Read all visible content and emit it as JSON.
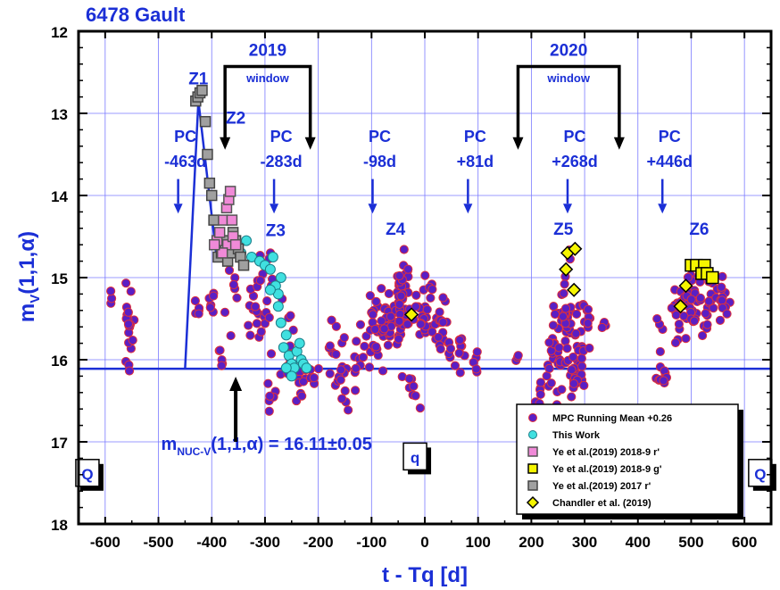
{
  "chart_data": {
    "type": "scatter",
    "title": "6478 Gault",
    "xlabel": "t - Tq [d]",
    "ylabel": {
      "main": "m",
      "sub": "V",
      "rest": "(1,1,α)"
    },
    "xlim": [
      -650,
      650
    ],
    "ylim": [
      18,
      12
    ],
    "y_inverted": true,
    "grid": true,
    "x_ticks": [
      "-600",
      "-500",
      "-400",
      "-300",
      "-200",
      "-100",
      "0",
      "100",
      "200",
      "300",
      "400",
      "500",
      "600"
    ],
    "y_ticks": [
      "12",
      "13",
      "14",
      "15",
      "16",
      "17",
      "18"
    ],
    "nucleus_line": {
      "y": 16.11,
      "label": {
        "main": "m",
        "sub": "NUC-V",
        "rest": "(1,1,α) = 16.11±0.05"
      },
      "color": "#1b2fd6"
    },
    "legend": {
      "placement": "bottom-right",
      "entries": [
        {
          "name": "MPC Running Mean +0.26",
          "marker": "circle",
          "color": "#5a1fc4",
          "edge": "#e0303a"
        },
        {
          "name": "This Work",
          "marker": "circle",
          "color": "#40e0e0",
          "edge": "#1a7f8a"
        },
        {
          "name": "Ye et al.(2019) 2018-9  r'",
          "marker": "square",
          "color": "#f08ad8",
          "edge": "#555555"
        },
        {
          "name": "Ye et al.(2019) 2018-9  g'",
          "marker": "square",
          "color": "#f5f500",
          "edge": "#000000"
        },
        {
          "name": "Ye et al.(2019) 2017 r'",
          "marker": "square",
          "color": "#a0a0a0",
          "edge": "#444444"
        },
        {
          "name": "Chandler et al. (2019)",
          "marker": "diamond",
          "color": "#f5f500",
          "edge": "#000000"
        }
      ]
    },
    "zones": [
      {
        "label": "Z1",
        "x": -425,
        "y": 12.57
      },
      {
        "label": "Z2",
        "x": -355,
        "y": 13.05
      },
      {
        "label": "Z3",
        "x": -280,
        "y": 14.42
      },
      {
        "label": "Z4",
        "x": -55,
        "y": 14.4
      },
      {
        "label": "Z5",
        "x": 260,
        "y": 14.4
      },
      {
        "label": "Z6",
        "x": 515,
        "y": 14.4
      }
    ],
    "perihelion_markers": [
      {
        "line1": "PC",
        "line2": "-463d",
        "x": -463
      },
      {
        "line1": "PC",
        "line2": "-283d",
        "x": -283
      },
      {
        "line1": "PC",
        "line2": "-98d",
        "x": -98
      },
      {
        "line1": "PC",
        "line2": "+81d",
        "x": 81
      },
      {
        "line1": "PC",
        "line2": "+268d",
        "x": 268
      },
      {
        "line1": "PC",
        "line2": "+446d",
        "x": 446
      }
    ],
    "windows": [
      {
        "year": "2019",
        "word": "window",
        "start": -375,
        "end": -215
      },
      {
        "year": "2020",
        "word": "window",
        "start": 175,
        "end": 365
      }
    ],
    "q_markers": [
      {
        "label": "Q",
        "x": -630,
        "y": 17.4
      },
      {
        "label": "q",
        "x": -15,
        "y": 17.2
      },
      {
        "label": "Q",
        "x": 633,
        "y": 17.4
      }
    ],
    "up_arrow": {
      "x": -355,
      "from_y": 17.0,
      "to_y": 16.25
    },
    "z1_fit_line": [
      [
        -450,
        16.11
      ],
      [
        -425,
        12.85
      ],
      [
        -390,
        14.8
      ]
    ],
    "series": [
      {
        "name": "MPC Running Mean +0.26",
        "marker": "circle",
        "clusters": [
          {
            "x": -590,
            "y": 15.2,
            "n": 3,
            "sx": 6,
            "sy": 0.1
          },
          {
            "x": -555,
            "y": 15.5,
            "n": 20,
            "sx": 10,
            "sy": 0.35
          },
          {
            "x": -555,
            "y": 16.1,
            "n": 2,
            "sx": 3,
            "sy": 0.05
          },
          {
            "x": -425,
            "y": 15.4,
            "n": 5,
            "sx": 8,
            "sy": 0.1
          },
          {
            "x": -400,
            "y": 15.3,
            "n": 6,
            "sx": 6,
            "sy": 0.2
          },
          {
            "x": -385,
            "y": 15.9,
            "n": 5,
            "sx": 8,
            "sy": 0.15
          },
          {
            "x": -360,
            "y": 15.2,
            "n": 8,
            "sx": 12,
            "sy": 0.35
          },
          {
            "x": -325,
            "y": 15.5,
            "n": 8,
            "sx": 12,
            "sy": 0.2
          },
          {
            "x": -300,
            "y": 15.3,
            "n": 20,
            "sx": 18,
            "sy": 0.45
          },
          {
            "x": -290,
            "y": 16.5,
            "n": 6,
            "sx": 8,
            "sy": 0.25
          },
          {
            "x": -255,
            "y": 15.8,
            "n": 10,
            "sx": 12,
            "sy": 0.3
          },
          {
            "x": -230,
            "y": 16.1,
            "n": 10,
            "sx": 12,
            "sy": 0.25
          },
          {
            "x": -210,
            "y": 16.2,
            "n": 6,
            "sx": 8,
            "sy": 0.15
          },
          {
            "x": -175,
            "y": 16.0,
            "n": 10,
            "sx": 8,
            "sy": 0.3
          },
          {
            "x": -150,
            "y": 16.3,
            "n": 12,
            "sx": 10,
            "sy": 0.3
          },
          {
            "x": -125,
            "y": 16.1,
            "n": 10,
            "sx": 10,
            "sy": 0.35
          },
          {
            "x": -95,
            "y": 15.7,
            "n": 25,
            "sx": 12,
            "sy": 0.35
          },
          {
            "x": -65,
            "y": 15.5,
            "n": 30,
            "sx": 14,
            "sy": 0.3
          },
          {
            "x": -40,
            "y": 15.4,
            "n": 35,
            "sx": 12,
            "sy": 0.3
          },
          {
            "x": -40,
            "y": 14.9,
            "n": 8,
            "sx": 8,
            "sy": 0.2
          },
          {
            "x": -25,
            "y": 16.3,
            "n": 8,
            "sx": 10,
            "sy": 0.3
          },
          {
            "x": 0,
            "y": 15.4,
            "n": 25,
            "sx": 12,
            "sy": 0.3
          },
          {
            "x": 30,
            "y": 15.6,
            "n": 20,
            "sx": 12,
            "sy": 0.25
          },
          {
            "x": 60,
            "y": 15.9,
            "n": 15,
            "sx": 12,
            "sy": 0.2
          },
          {
            "x": 95,
            "y": 16.0,
            "n": 5,
            "sx": 4,
            "sy": 0.1
          },
          {
            "x": 175,
            "y": 16.0,
            "n": 3,
            "sx": 3,
            "sy": 0.05
          },
          {
            "x": 215,
            "y": 16.4,
            "n": 6,
            "sx": 6,
            "sy": 0.15
          },
          {
            "x": 245,
            "y": 15.9,
            "n": 25,
            "sx": 10,
            "sy": 0.45
          },
          {
            "x": 265,
            "y": 15.5,
            "n": 35,
            "sx": 8,
            "sy": 0.5
          },
          {
            "x": 285,
            "y": 15.9,
            "n": 30,
            "sx": 10,
            "sy": 0.45
          },
          {
            "x": 305,
            "y": 15.5,
            "n": 10,
            "sx": 8,
            "sy": 0.25
          },
          {
            "x": 335,
            "y": 15.6,
            "n": 4,
            "sx": 4,
            "sy": 0.1
          },
          {
            "x": 440,
            "y": 15.8,
            "n": 8,
            "sx": 6,
            "sy": 0.3
          },
          {
            "x": 450,
            "y": 16.2,
            "n": 5,
            "sx": 4,
            "sy": 0.1
          },
          {
            "x": 475,
            "y": 15.4,
            "n": 20,
            "sx": 12,
            "sy": 0.3
          },
          {
            "x": 500,
            "y": 15.3,
            "n": 25,
            "sx": 12,
            "sy": 0.3
          },
          {
            "x": 530,
            "y": 15.3,
            "n": 20,
            "sx": 14,
            "sy": 0.3
          },
          {
            "x": 560,
            "y": 15.3,
            "n": 15,
            "sx": 10,
            "sy": 0.25
          }
        ]
      },
      {
        "name": "This Work",
        "marker": "circle",
        "points": [
          [
            -360,
            14.6
          ],
          [
            -345,
            14.7
          ],
          [
            -335,
            14.55
          ],
          [
            -325,
            14.75
          ],
          [
            -310,
            14.8
          ],
          [
            -300,
            14.85
          ],
          [
            -290,
            14.9
          ],
          [
            -285,
            14.75
          ],
          [
            -280,
            15.1
          ],
          [
            -275,
            15.2
          ],
          [
            -275,
            15.35
          ],
          [
            -270,
            15.55
          ],
          [
            -265,
            15.85
          ],
          [
            -260,
            15.7
          ],
          [
            -255,
            15.95
          ],
          [
            -250,
            16.05
          ],
          [
            -245,
            16.1
          ],
          [
            -240,
            15.9
          ],
          [
            -235,
            15.8
          ],
          [
            -232,
            16.0
          ],
          [
            -228,
            16.05
          ],
          [
            -222,
            16.1
          ],
          [
            -260,
            16.1
          ],
          [
            -250,
            16.2
          ],
          [
            -270,
            15.0
          ],
          [
            -290,
            15.15
          ]
        ]
      },
      {
        "name": "Ye et al.(2019) 2018-9  r'",
        "marker": "square",
        "points": [
          [
            -390,
            14.55
          ],
          [
            -385,
            14.45
          ],
          [
            -378,
            14.3
          ],
          [
            -372,
            14.15
          ],
          [
            -368,
            14.05
          ],
          [
            -365,
            13.95
          ],
          [
            -362,
            14.3
          ],
          [
            -370,
            14.6
          ],
          [
            -380,
            14.7
          ],
          [
            -395,
            14.6
          ],
          [
            -360,
            14.5
          ],
          [
            -355,
            14.6
          ]
        ]
      },
      {
        "name": "Ye et al.(2019) 2018-9  g'",
        "marker": "square",
        "points": [
          [
            500,
            14.85
          ],
          [
            510,
            14.85
          ],
          [
            525,
            14.85
          ],
          [
            520,
            14.95
          ],
          [
            530,
            14.95
          ],
          [
            540,
            15.0
          ]
        ]
      },
      {
        "name": "Ye et al.(2019) 2017 r'",
        "marker": "square",
        "points": [
          [
            -430,
            12.85
          ],
          [
            -426,
            12.8
          ],
          [
            -422,
            12.75
          ],
          [
            -418,
            12.72
          ],
          [
            -412,
            13.1
          ],
          [
            -408,
            13.5
          ],
          [
            -404,
            13.85
          ],
          [
            -400,
            14.0
          ],
          [
            -396,
            14.3
          ],
          [
            -392,
            14.6
          ],
          [
            -388,
            14.75
          ],
          [
            -382,
            14.7
          ],
          [
            -375,
            14.55
          ],
          [
            -370,
            14.8
          ],
          [
            -365,
            14.7
          ],
          [
            -360,
            14.45
          ],
          [
            -355,
            14.55
          ],
          [
            -350,
            14.65
          ],
          [
            -346,
            14.75
          ],
          [
            -340,
            14.85
          ]
        ]
      },
      {
        "name": "Chandler et al. (2019)",
        "marker": "diamond",
        "points": [
          [
            -25,
            15.45
          ],
          [
            268,
            14.7
          ],
          [
            282,
            14.65
          ],
          [
            265,
            14.9
          ],
          [
            280,
            15.15
          ],
          [
            490,
            15.1
          ],
          [
            480,
            15.35
          ]
        ]
      }
    ]
  }
}
